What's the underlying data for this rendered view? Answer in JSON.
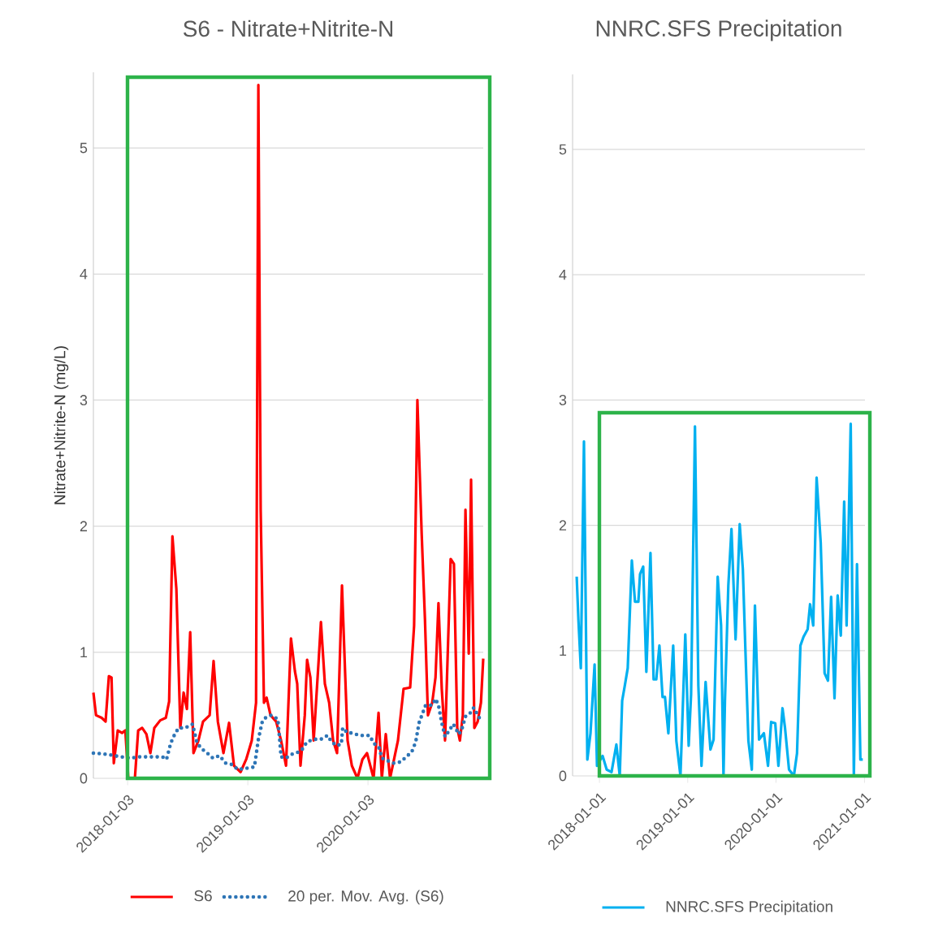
{
  "chart_data": [
    {
      "type": "line",
      "title": "S6 -  Nitrate+Nitrite-N",
      "ylabel": "Nitrate+Nitrite-N  (mg/L)",
      "xlim": [
        "2017-09-21",
        "2020-12-18"
      ],
      "xticks": [
        "2018-01-03",
        "2019-01-03",
        "2020-01-03"
      ],
      "ylim": [
        0,
        5.6
      ],
      "yticks": [
        0,
        1,
        2,
        3,
        4,
        5
      ],
      "grid": "y",
      "legend": "bottom",
      "marker": "none",
      "series": [
        {
          "name": "S6",
          "color": "#ff0000",
          "line_style": "solid",
          "x": [
            "2017-09-21",
            "2017-09-29",
            "2017-10-16",
            "2017-10-28",
            "2017-11-07",
            "2017-11-15",
            "2017-11-22",
            "2017-12-04",
            "2017-12-17",
            "2017-12-27",
            "2018-01-05",
            "2018-01-25",
            "2018-02-04",
            "2018-02-16",
            "2018-03-01",
            "2018-03-13",
            "2018-03-25",
            "2018-04-12",
            "2018-04-29",
            "2018-05-09",
            "2018-05-19",
            "2018-05-31",
            "2018-06-12",
            "2018-06-22",
            "2018-07-02",
            "2018-07-12",
            "2018-07-22",
            "2018-08-06",
            "2018-08-20",
            "2018-09-09",
            "2018-09-21",
            "2018-10-04",
            "2018-10-21",
            "2018-11-07",
            "2018-11-22",
            "2018-12-12",
            "2018-12-29",
            "2019-01-15",
            "2019-01-28",
            "2019-02-04",
            "2019-02-11",
            "2019-02-21",
            "2019-03-01",
            "2019-03-13",
            "2019-03-30",
            "2019-04-14",
            "2019-04-29",
            "2019-05-14",
            "2019-05-26",
            "2019-06-02",
            "2019-06-12",
            "2019-06-25",
            "2019-07-02",
            "2019-07-12",
            "2019-07-22",
            "2019-08-06",
            "2019-08-13",
            "2019-08-25",
            "2019-09-07",
            "2019-09-19",
            "2019-10-01",
            "2019-10-16",
            "2019-10-26",
            "2019-11-02",
            "2019-11-15",
            "2019-12-02",
            "2019-12-17",
            "2019-12-31",
            "2020-01-20",
            "2020-02-04",
            "2020-02-14",
            "2020-02-26",
            "2020-03-10",
            "2020-04-03",
            "2020-04-20",
            "2020-05-10",
            "2020-05-22",
            "2020-06-01",
            "2020-06-14",
            "2020-06-24",
            "2020-07-03",
            "2020-07-16",
            "2020-07-26",
            "2020-08-04",
            "2020-08-14",
            "2020-08-24",
            "2020-09-10",
            "2020-09-20",
            "2020-09-30",
            "2020-10-08",
            "2020-10-17",
            "2020-10-25",
            "2020-11-04",
            "2020-11-11",
            "2020-11-21",
            "2020-12-01",
            "2020-12-11",
            "2020-12-18"
          ],
          "values": [
            0.68,
            0.5,
            0.48,
            0.45,
            0.81,
            0.8,
            0.12,
            0.38,
            0.36,
            0.38,
            0.0,
            0.0,
            0.38,
            0.4,
            0.35,
            0.2,
            0.4,
            0.46,
            0.48,
            0.61,
            1.92,
            1.5,
            0.4,
            0.68,
            0.55,
            1.16,
            0.2,
            0.3,
            0.45,
            0.5,
            0.93,
            0.45,
            0.2,
            0.44,
            0.1,
            0.05,
            0.15,
            0.3,
            0.6,
            5.5,
            2.13,
            0.6,
            0.64,
            0.5,
            0.45,
            0.3,
            0.1,
            1.11,
            0.85,
            0.75,
            0.1,
            0.5,
            0.94,
            0.8,
            0.3,
            0.93,
            1.24,
            0.75,
            0.6,
            0.3,
            0.2,
            1.53,
            0.8,
            0.3,
            0.1,
            0.0,
            0.15,
            0.2,
            0.0,
            0.52,
            0.0,
            0.35,
            0.0,
            0.3,
            0.71,
            0.72,
            1.21,
            3.0,
            1.94,
            1.26,
            0.5,
            0.6,
            0.8,
            1.39,
            0.71,
            0.3,
            1.74,
            1.7,
            0.4,
            0.3,
            0.5,
            2.13,
            0.99,
            2.37,
            0.4,
            0.45,
            0.6,
            0.95
          ]
        },
        {
          "name": "20 per. Mov. Avg. (S6)",
          "color": "#2e75b6",
          "line_style": "dotted",
          "x": [
            "2017-09-21",
            "2017-11-05",
            "2017-11-22",
            "2018-01-10",
            "2018-02-04",
            "2018-03-13",
            "2018-04-19",
            "2018-05-01",
            "2018-05-14",
            "2018-05-26",
            "2018-06-07",
            "2018-06-27",
            "2018-07-19",
            "2018-08-01",
            "2018-08-13",
            "2018-09-02",
            "2018-09-19",
            "2018-10-09",
            "2018-10-28",
            "2018-11-15",
            "2018-12-04",
            "2018-12-29",
            "2019-01-23",
            "2019-02-04",
            "2019-02-16",
            "2019-02-26",
            "2019-03-15",
            "2019-04-04",
            "2019-04-09",
            "2019-04-14",
            "2019-04-29",
            "2019-05-14",
            "2019-05-31",
            "2019-06-17",
            "2019-07-02",
            "2019-07-24",
            "2019-08-13",
            "2019-09-02",
            "2019-09-14",
            "2019-09-29",
            "2019-10-14",
            "2019-10-18",
            "2019-11-02",
            "2019-11-15",
            "2019-12-09",
            "2020-01-08",
            "2020-01-20",
            "2020-02-06",
            "2020-02-14",
            "2020-03-02",
            "2020-03-22",
            "2020-04-11",
            "2020-04-28",
            "2020-05-15",
            "2020-05-27",
            "2020-06-06",
            "2020-06-16",
            "2020-06-26",
            "2020-07-16",
            "2020-07-26",
            "2020-08-04",
            "2020-08-14",
            "2020-08-24",
            "2020-09-06",
            "2020-09-18",
            "2020-10-05",
            "2020-10-13",
            "2020-10-25",
            "2020-11-09",
            "2020-11-19",
            "2020-12-06",
            "2020-12-18"
          ],
          "values": [
            0.2,
            0.19,
            0.18,
            0.16,
            0.17,
            0.17,
            0.17,
            0.15,
            0.28,
            0.35,
            0.4,
            0.4,
            0.43,
            0.29,
            0.24,
            0.2,
            0.16,
            0.18,
            0.12,
            0.11,
            0.07,
            0.08,
            0.09,
            0.31,
            0.45,
            0.48,
            0.5,
            0.47,
            0.33,
            0.17,
            0.16,
            0.19,
            0.2,
            0.23,
            0.29,
            0.31,
            0.31,
            0.34,
            0.29,
            0.26,
            0.27,
            0.4,
            0.36,
            0.36,
            0.34,
            0.34,
            0.28,
            0.24,
            0.16,
            0.14,
            0.12,
            0.13,
            0.17,
            0.21,
            0.29,
            0.44,
            0.51,
            0.58,
            0.58,
            0.63,
            0.58,
            0.44,
            0.33,
            0.38,
            0.43,
            0.35,
            0.38,
            0.49,
            0.52,
            0.56,
            0.48,
            0.49
          ]
        }
      ]
    },
    {
      "type": "line",
      "title": "NNRC.SFS Precipitation",
      "xlim": [
        "2017-09-12",
        "2021-01-03"
      ],
      "xticks": [
        "2018-01-01",
        "2019-01-01",
        "2020-01-01",
        "2021-01-01"
      ],
      "ylim": [
        0,
        5.6
      ],
      "yticks": [
        0,
        1,
        2,
        3,
        4,
        5
      ],
      "grid": "y",
      "legend": "bottom",
      "marker": "none",
      "series": [
        {
          "name": "NNRC.SFS Precipitation",
          "color": "#00b0f0",
          "line_style": "solid",
          "x": [
            "2017-09-29",
            "2017-10-06",
            "2017-10-16",
            "2017-10-29",
            "2017-11-12",
            "2017-11-25",
            "2017-12-12",
            "2017-12-22",
            "2018-01-14",
            "2018-01-31",
            "2018-02-20",
            "2018-03-12",
            "2018-03-26",
            "2018-04-05",
            "2018-04-15",
            "2018-04-28",
            "2018-05-15",
            "2018-05-28",
            "2018-06-11",
            "2018-06-18",
            "2018-07-01",
            "2018-07-14",
            "2018-07-31",
            "2018-08-13",
            "2018-08-24",
            "2018-09-06",
            "2018-09-19",
            "2018-09-29",
            "2018-10-13",
            "2018-11-02",
            "2018-11-15",
            "2018-12-02",
            "2018-12-22",
            "2019-01-05",
            "2019-01-15",
            "2019-01-31",
            "2019-02-14",
            "2019-02-27",
            "2019-03-16",
            "2019-04-05",
            "2019-04-18",
            "2019-05-05",
            "2019-05-19",
            "2019-05-29",
            "2019-06-04",
            "2019-06-18",
            "2019-07-01",
            "2019-07-18",
            "2019-08-04",
            "2019-08-17",
            "2019-08-27",
            "2019-09-09",
            "2019-09-23",
            "2019-10-06",
            "2019-10-23",
            "2019-11-12",
            "2019-11-29",
            "2019-12-12",
            "2019-12-29",
            "2020-01-11",
            "2020-01-28",
            "2020-02-07",
            "2020-02-24",
            "2020-03-15",
            "2020-03-28",
            "2020-04-11",
            "2020-04-24",
            "2020-05-11",
            "2020-05-21",
            "2020-06-03",
            "2020-06-17",
            "2020-07-04",
            "2020-07-20",
            "2020-08-03",
            "2020-08-16",
            "2020-08-30",
            "2020-09-12",
            "2020-09-25",
            "2020-10-09",
            "2020-10-19",
            "2020-11-05",
            "2020-11-18",
            "2020-12-01",
            "2020-12-15",
            "2020-12-25"
          ],
          "values": [
            1.59,
            1.25,
            0.86,
            2.67,
            0.13,
            0.34,
            0.89,
            0.08,
            0.16,
            0.05,
            0.03,
            0.25,
            0.0,
            0.6,
            0.71,
            0.86,
            1.72,
            1.39,
            1.39,
            1.61,
            1.67,
            0.83,
            1.78,
            0.77,
            0.77,
            1.04,
            0.63,
            0.63,
            0.34,
            1.04,
            0.28,
            0.0,
            1.13,
            0.24,
            0.65,
            2.79,
            0.72,
            0.08,
            0.75,
            0.21,
            0.29,
            1.59,
            1.2,
            0.0,
            0.6,
            1.52,
            1.97,
            1.09,
            2.01,
            1.65,
            1.04,
            0.28,
            0.05,
            1.36,
            0.29,
            0.34,
            0.08,
            0.43,
            0.42,
            0.08,
            0.54,
            0.39,
            0.05,
            0.0,
            0.18,
            1.04,
            1.11,
            1.17,
            1.37,
            1.2,
            2.38,
            1.86,
            0.82,
            0.76,
            1.43,
            0.62,
            1.44,
            1.12,
            2.19,
            1.2,
            2.81,
            0.0,
            1.69,
            0.13,
            0.13
          ]
        }
      ]
    }
  ]
}
